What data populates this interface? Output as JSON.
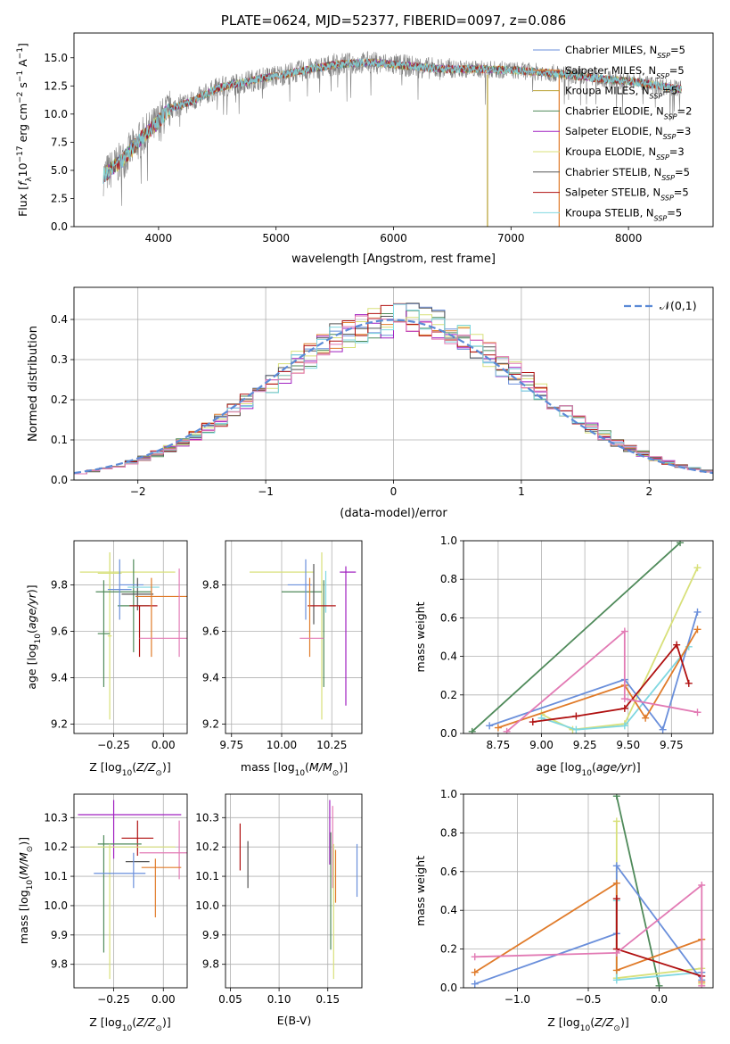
{
  "colors": {
    "c_miles": "#6a8fdb",
    "s_miles": "#e07b2a",
    "k_miles": "#b8a030",
    "c_elodie": "#4f8a5a",
    "s_elodie": "#a020c0",
    "k_elodie": "#d8e07a",
    "c_stelib": "#555555",
    "s_stelib": "#b01010",
    "k_stelib": "#7fd7e0",
    "pink": "#e27ab4",
    "gauss": "#5b8ad6",
    "spectrum": "#808080"
  },
  "chart_data": [
    {
      "type": "line",
      "title": "PLATE=0624, MJD=52377, FIBERID=0097, z=0.086",
      "xlabel": "wavelength [Angstrom, rest frame]",
      "ylabel": "Flux [f_λ 10^-17 erg cm^-2 s^-1 A^-1]",
      "xlim": [
        3280,
        8720
      ],
      "ylim": [
        0,
        17.2
      ],
      "xticks": [
        "4000",
        "5000",
        "6000",
        "7000",
        "8000"
      ],
      "yticks": [
        "0.0",
        "2.5",
        "5.0",
        "7.5",
        "10.0",
        "12.5",
        "15.0"
      ],
      "grid": false,
      "legend_position": "right",
      "legend": [
        {
          "base": "Chabrier MILES, N",
          "sub": "SSP",
          "tail": "=5",
          "color": "c_miles"
        },
        {
          "base": "Salpeter MILES, N",
          "sub": "SSP",
          "tail": "=5",
          "color": "s_miles"
        },
        {
          "base": "Kroupa MILES, N",
          "sub": "SSP",
          "tail": "=5",
          "color": "k_miles"
        },
        {
          "base": "Chabrier ELODIE, N",
          "sub": "SSP",
          "tail": "=2",
          "color": "c_elodie"
        },
        {
          "base": "Salpeter ELODIE, N",
          "sub": "SSP",
          "tail": "=3",
          "color": "s_elodie"
        },
        {
          "base": "Kroupa ELODIE, N",
          "sub": "SSP",
          "tail": "=3",
          "color": "k_elodie"
        },
        {
          "base": "Chabrier STELIB, N",
          "sub": "SSP",
          "tail": "=5",
          "color": "c_stelib"
        },
        {
          "base": "Salpeter STELIB, N",
          "sub": "SSP",
          "tail": "=5",
          "color": "s_stelib"
        },
        {
          "base": "Kroupa STELIB, N",
          "sub": "SSP",
          "tail": "=5",
          "color": "k_stelib"
        }
      ],
      "continuum": [
        [
          3530,
          4.5
        ],
        [
          3700,
          6.0
        ],
        [
          3850,
          7.8
        ],
        [
          3950,
          8.8
        ],
        [
          4100,
          10.5
        ],
        [
          4300,
          11.2
        ],
        [
          4500,
          12.3
        ],
        [
          4800,
          13.0
        ],
        [
          5100,
          13.6
        ],
        [
          5500,
          14.4
        ],
        [
          5800,
          14.6
        ],
        [
          6100,
          14.3
        ],
        [
          6400,
          14.0
        ],
        [
          6700,
          14.0
        ],
        [
          7000,
          13.9
        ],
        [
          7300,
          13.7
        ],
        [
          7700,
          13.2
        ],
        [
          8100,
          12.8
        ],
        [
          8450,
          12.2
        ]
      ],
      "spikes": [
        {
          "x": 6800,
          "color": "k_miles"
        },
        {
          "x": 7410,
          "color": "s_miles"
        }
      ]
    },
    {
      "type": "bar",
      "xlabel": "(data-model)/error",
      "ylabel": "Normed distribution",
      "xlim": [
        -2.5,
        2.5
      ],
      "ylim": [
        0,
        0.48
      ],
      "xticks": [
        "−2",
        "−1",
        "0",
        "1",
        "2"
      ],
      "yticks": [
        "0.0",
        "0.1",
        "0.2",
        "0.3",
        "0.4"
      ],
      "grid": true,
      "legend_label": "𝒩(0,1)",
      "legend_position": "top-right",
      "bin_width": 0.1,
      "gauss_sigma": 1.0
    },
    {
      "type": "scatter",
      "xlabel": "Z [log10(Z/Z⊙)]",
      "ylabel": "age  [log10(age/yr)]",
      "xlim": [
        -0.45,
        0.12
      ],
      "ylim": [
        9.16,
        9.99
      ],
      "xticks": [
        "−0.25",
        "0.00"
      ],
      "yticks": [
        "9.2",
        "9.4",
        "9.6",
        "9.8"
      ],
      "grid": true,
      "points": [
        {
          "x": -0.27,
          "xe": 0.06,
          "y": 9.85,
          "ye": 0.09,
          "c": "k_elodie"
        },
        {
          "x": -0.18,
          "xe": 0.24,
          "y": 9.855,
          "ye": 0.0,
          "c": "k_elodie"
        },
        {
          "x": -0.27,
          "xe": 0.01,
          "y": 9.58,
          "ye": 0.36,
          "c": "k_elodie"
        },
        {
          "x": -0.3,
          "xe": 0.03,
          "y": 9.59,
          "ye": 0.23,
          "c": "c_elodie"
        },
        {
          "x": -0.2,
          "xe": 0.14,
          "y": 9.77,
          "ye": 0.0,
          "c": "c_elodie"
        },
        {
          "x": -0.15,
          "xe": 0.08,
          "y": 9.71,
          "ye": 0.2,
          "c": "c_elodie"
        },
        {
          "x": -0.22,
          "xe": 0.06,
          "y": 9.78,
          "ye": 0.13,
          "c": "c_miles"
        },
        {
          "x": -0.16,
          "xe": 0.06,
          "y": 9.8,
          "ye": 0.0,
          "c": "c_miles"
        },
        {
          "x": -0.13,
          "xe": 0.08,
          "y": 9.76,
          "ye": 0.07,
          "c": "c_stelib"
        },
        {
          "x": -0.1,
          "xe": 0.08,
          "y": 9.79,
          "ye": 0.0,
          "c": "k_stelib"
        },
        {
          "x": -0.1,
          "xe": 0.07,
          "y": 9.71,
          "ye": 0.0,
          "c": "s_stelib"
        },
        {
          "x": -0.12,
          "xe": 0.0,
          "y": 9.6,
          "ye": 0.11,
          "c": "s_stelib"
        },
        {
          "x": -0.06,
          "xe": 0.0,
          "y": 9.66,
          "ye": 0.17,
          "c": "s_miles"
        },
        {
          "x": -0.01,
          "xe": 0.13,
          "y": 9.75,
          "ye": 0.0,
          "c": "s_miles"
        },
        {
          "x": 0.08,
          "xe": 0.0,
          "y": 9.68,
          "ye": 0.19,
          "c": "pink"
        },
        {
          "x": 0.02,
          "xe": 0.14,
          "y": 9.57,
          "ye": 0.0,
          "c": "pink"
        }
      ]
    },
    {
      "type": "scatter",
      "xlabel": "mass [log10(M/M⊙)]",
      "xlim": [
        9.72,
        10.4
      ],
      "ylim": [
        9.16,
        9.99
      ],
      "xticks": [
        "9.75",
        "10.00",
        "10.25"
      ],
      "yticks": [
        "9.2",
        "9.4",
        "9.6",
        "9.8"
      ],
      "grid": true,
      "points": [
        {
          "x": 10.0,
          "xe": 0.16,
          "y": 9.855,
          "ye": 0.0,
          "c": "k_elodie"
        },
        {
          "x": 10.2,
          "xe": 0.0,
          "y": 9.58,
          "ye": 0.36,
          "c": "k_elodie"
        },
        {
          "x": 10.1,
          "xe": 0.1,
          "y": 9.77,
          "ye": 0.0,
          "c": "c_elodie"
        },
        {
          "x": 10.21,
          "xe": 0.0,
          "y": 9.59,
          "ye": 0.23,
          "c": "c_elodie"
        },
        {
          "x": 10.09,
          "xe": 0.06,
          "y": 9.8,
          "ye": 0.0,
          "c": "c_miles"
        },
        {
          "x": 10.12,
          "xe": 0.0,
          "y": 9.78,
          "ye": 0.13,
          "c": "c_miles"
        },
        {
          "x": 10.16,
          "xe": 0.0,
          "y": 9.76,
          "ye": 0.13,
          "c": "c_stelib"
        },
        {
          "x": 10.22,
          "xe": 0.0,
          "y": 9.77,
          "ye": 0.09,
          "c": "k_stelib"
        },
        {
          "x": 10.2,
          "xe": 0.07,
          "y": 9.71,
          "ye": 0.0,
          "c": "s_stelib"
        },
        {
          "x": 10.14,
          "xe": 0.0,
          "y": 9.66,
          "ye": 0.17,
          "c": "s_miles"
        },
        {
          "x": 10.15,
          "xe": 0.06,
          "y": 9.57,
          "ye": 0.0,
          "c": "pink"
        },
        {
          "x": 10.32,
          "xe": 0.0,
          "y": 9.58,
          "ye": 0.3,
          "c": "s_elodie"
        },
        {
          "x": 10.33,
          "xe": 0.04,
          "y": 9.855,
          "ye": 0.0,
          "c": "s_elodie"
        }
      ]
    },
    {
      "type": "line",
      "xlabel": "age  [log10(age/yr)]",
      "ylabel": "mass weight",
      "xlim": [
        8.55,
        9.99
      ],
      "ylim": [
        0,
        1.0
      ],
      "xticks": [
        "8.75",
        "9.00",
        "9.25",
        "9.50",
        "9.75"
      ],
      "yticks": [
        "0.0",
        "0.2",
        "0.4",
        "0.6",
        "0.8",
        "1.0"
      ],
      "grid": true,
      "series": [
        {
          "c": "c_elodie",
          "x": [
            8.6,
            9.8
          ],
          "y": [
            0.01,
            0.99
          ]
        },
        {
          "c": "k_elodie",
          "x": [
            9.0,
            9.18,
            9.48,
            9.9
          ],
          "y": [
            0.1,
            0.02,
            0.05,
            0.86
          ]
        },
        {
          "c": "k_stelib",
          "x": [
            9.0,
            9.2,
            9.48,
            9.85
          ],
          "y": [
            0.08,
            0.02,
            0.04,
            0.45
          ]
        },
        {
          "c": "c_miles",
          "x": [
            8.7,
            9.48,
            9.7,
            9.9
          ],
          "y": [
            0.04,
            0.28,
            0.02,
            0.63
          ]
        },
        {
          "c": "s_miles",
          "x": [
            8.75,
            9.48,
            9.6,
            9.9
          ],
          "y": [
            0.03,
            0.25,
            0.08,
            0.54
          ]
        },
        {
          "c": "s_stelib",
          "x": [
            8.95,
            9.2,
            9.48,
            9.78,
            9.85
          ],
          "y": [
            0.06,
            0.09,
            0.13,
            0.46,
            0.26
          ]
        },
        {
          "c": "pink",
          "x": [
            8.8,
            9.48,
            9.48,
            9.9
          ],
          "y": [
            0.01,
            0.53,
            0.18,
            0.11
          ]
        }
      ]
    },
    {
      "type": "scatter",
      "xlabel": "Z [log10(Z/Z⊙)]",
      "ylabel": "mass [log10(M/M⊙)]",
      "xlim": [
        -0.45,
        0.12
      ],
      "ylim": [
        9.72,
        10.38
      ],
      "xticks": [
        "−0.25",
        "0.00"
      ],
      "yticks": [
        "9.8",
        "9.9",
        "10.0",
        "10.1",
        "10.2",
        "10.3"
      ],
      "grid": true,
      "points": [
        {
          "x": -0.17,
          "xe": 0.26,
          "y": 10.31,
          "ye": 0.0,
          "c": "s_elodie"
        },
        {
          "x": -0.25,
          "xe": 0.0,
          "y": 10.26,
          "ye": 0.1,
          "c": "s_elodie"
        },
        {
          "x": -0.13,
          "xe": 0.08,
          "y": 10.23,
          "ye": 0.0,
          "c": "s_stelib"
        },
        {
          "x": -0.13,
          "xe": 0.0,
          "y": 10.23,
          "ye": 0.06,
          "c": "s_stelib"
        },
        {
          "x": -0.22,
          "xe": 0.11,
          "y": 10.21,
          "ye": 0.0,
          "c": "c_elodie"
        },
        {
          "x": -0.3,
          "xe": 0.0,
          "y": 10.04,
          "ye": 0.2,
          "c": "c_elodie"
        },
        {
          "x": -0.18,
          "xe": 0.24,
          "y": 10.2,
          "ye": 0.0,
          "c": "k_elodie"
        },
        {
          "x": -0.27,
          "xe": 0.0,
          "y": 9.98,
          "ye": 0.23,
          "c": "k_elodie"
        },
        {
          "x": 0.02,
          "xe": 0.14,
          "y": 10.18,
          "ye": 0.0,
          "c": "pink"
        },
        {
          "x": 0.08,
          "xe": 0.0,
          "y": 10.19,
          "ye": 0.1,
          "c": "pink"
        },
        {
          "x": -0.13,
          "xe": 0.06,
          "y": 10.15,
          "ye": 0.0,
          "c": "c_stelib"
        },
        {
          "x": -0.01,
          "xe": 0.1,
          "y": 10.13,
          "ye": 0.0,
          "c": "s_miles"
        },
        {
          "x": -0.04,
          "xe": 0.0,
          "y": 10.06,
          "ye": 0.1,
          "c": "s_miles"
        },
        {
          "x": -0.22,
          "xe": 0.13,
          "y": 10.11,
          "ye": 0.0,
          "c": "c_miles"
        },
        {
          "x": -0.15,
          "xe": 0.0,
          "y": 10.12,
          "ye": 0.06,
          "c": "c_miles"
        }
      ]
    },
    {
      "type": "scatter",
      "xlabel": "E(B-V)",
      "xlim": [
        0.045,
        0.185
      ],
      "ylim": [
        9.72,
        10.38
      ],
      "xticks": [
        "0.05",
        "0.10",
        "0.15"
      ],
      "yticks": [
        "9.8",
        "9.9",
        "10.0",
        "10.1",
        "10.2",
        "10.3"
      ],
      "grid": true,
      "points": [
        {
          "x": 0.06,
          "xe": 0.0,
          "y": 10.2,
          "ye": 0.08,
          "c": "s_stelib"
        },
        {
          "x": 0.068,
          "xe": 0.0,
          "y": 10.14,
          "ye": 0.08,
          "c": "c_stelib"
        },
        {
          "x": 0.152,
          "xe": 0.0,
          "y": 10.25,
          "ye": 0.11,
          "c": "s_elodie"
        },
        {
          "x": 0.153,
          "xe": 0.0,
          "y": 10.05,
          "ye": 0.2,
          "c": "c_elodie"
        },
        {
          "x": 0.155,
          "xe": 0.0,
          "y": 10.2,
          "ye": 0.14,
          "c": "pink"
        },
        {
          "x": 0.156,
          "xe": 0.0,
          "y": 9.98,
          "ye": 0.23,
          "c": "k_elodie"
        },
        {
          "x": 0.158,
          "xe": 0.0,
          "y": 10.1,
          "ye": 0.09,
          "c": "s_miles"
        },
        {
          "x": 0.18,
          "xe": 0.0,
          "y": 10.12,
          "ye": 0.09,
          "c": "c_miles"
        }
      ]
    },
    {
      "type": "line",
      "xlabel": "Z [log10(Z/Z⊙)]",
      "ylabel": "mass weight",
      "xlim": [
        -1.38,
        0.38
      ],
      "ylim": [
        0,
        1.0
      ],
      "xticks": [
        "−1.0",
        "−0.5",
        "0.0"
      ],
      "yticks": [
        "0.0",
        "0.2",
        "0.4",
        "0.6",
        "0.8",
        "1.0"
      ],
      "grid": true,
      "series": [
        {
          "c": "c_elodie",
          "x": [
            -0.3,
            0.0
          ],
          "y": [
            0.99,
            0.01
          ]
        },
        {
          "c": "k_elodie",
          "x": [
            -0.3,
            -0.3,
            0.3,
            0.3
          ],
          "y": [
            0.86,
            0.05,
            0.1,
            0.02
          ]
        },
        {
          "c": "k_stelib",
          "x": [
            -0.3,
            -0.3,
            0.3
          ],
          "y": [
            0.45,
            0.04,
            0.08
          ]
        },
        {
          "c": "c_miles",
          "x": [
            -1.3,
            -0.3,
            -0.3,
            0.3,
            0.3
          ],
          "y": [
            0.02,
            0.28,
            0.63,
            0.04,
            0.08
          ]
        },
        {
          "c": "s_miles",
          "x": [
            -1.3,
            -0.3,
            -0.3,
            0.3,
            0.3
          ],
          "y": [
            0.08,
            0.54,
            0.09,
            0.25,
            0.03
          ]
        },
        {
          "c": "s_stelib",
          "x": [
            -0.3,
            -0.3,
            0.3
          ],
          "y": [
            0.46,
            0.2,
            0.06
          ]
        },
        {
          "c": "pink",
          "x": [
            -1.3,
            -0.3,
            0.3,
            0.3
          ],
          "y": [
            0.16,
            0.18,
            0.53,
            0.01
          ]
        }
      ]
    }
  ]
}
